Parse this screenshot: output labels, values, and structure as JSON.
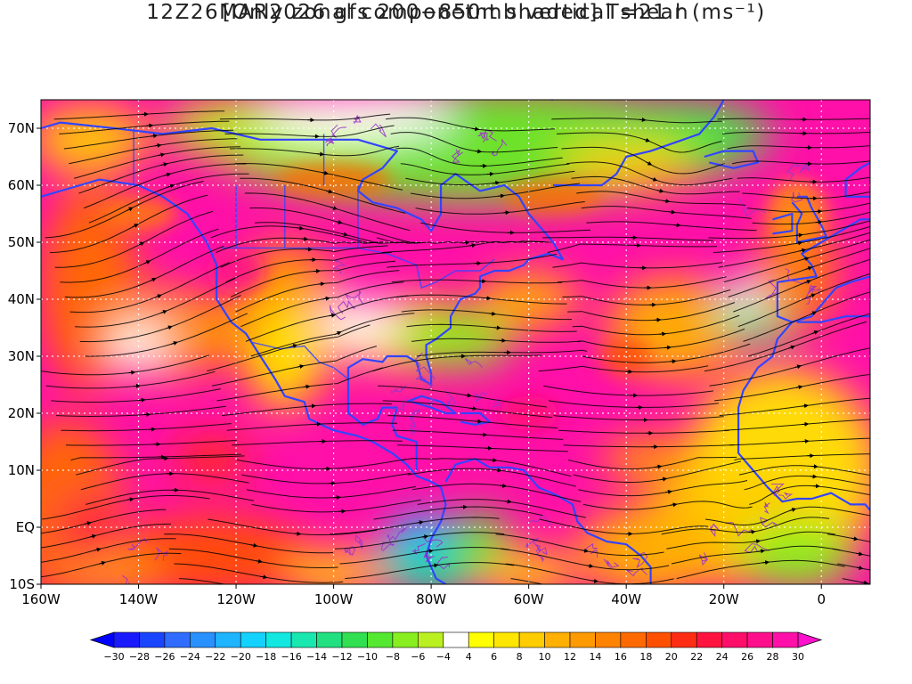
{
  "title": {
    "line1": "12Z26MAR2026 gfs 200−850mb vertical shear (ms⁻¹)",
    "line2": "[Only zonal componetnt shaded] T=21 h"
  },
  "map": {
    "lon_range": [
      -160,
      10
    ],
    "lat_range": [
      -10,
      75
    ],
    "lat_ticks": [
      "70N",
      "60N",
      "50N",
      "40N",
      "30N",
      "20N",
      "10N",
      "EQ",
      "10S"
    ],
    "lon_ticks": [
      "160W",
      "140W",
      "120W",
      "100W",
      "80W",
      "60W",
      "40W",
      "20W",
      "0"
    ],
    "lat_tick_values": [
      70,
      60,
      50,
      40,
      30,
      20,
      10,
      0,
      -10
    ],
    "lon_tick_values": [
      -160,
      -140,
      -120,
      -100,
      -80,
      -60,
      -40,
      -20,
      0
    ],
    "coastline_color": "#3344ff",
    "contour_color": "#9933cc",
    "streamline_color": "#000000"
  },
  "colorbar": {
    "labels": [
      "-30",
      "-28",
      "-26",
      "-24",
      "-22",
      "-20",
      "-18",
      "-16",
      "-14",
      "-12",
      "-10",
      "-8",
      "-6",
      "-4",
      "4",
      "6",
      "8",
      "10",
      "12",
      "14",
      "16",
      "18",
      "20",
      "22",
      "24",
      "26",
      "28",
      "30"
    ],
    "colors": [
      "#1a1aff",
      "#1a45ff",
      "#2f6cff",
      "#2890ff",
      "#1eb4ff",
      "#14d2ff",
      "#12e8e0",
      "#18e8b0",
      "#20e080",
      "#30e050",
      "#55e830",
      "#88ee20",
      "#bbf020",
      "#ffffff",
      "#ffff00",
      "#ffe600",
      "#ffcc00",
      "#ffb000",
      "#ff9a00",
      "#ff8200",
      "#ff6a00",
      "#ff5000",
      "#ff2c14",
      "#ff1440",
      "#ff0f6a",
      "#ff0f8c",
      "#ff10a8"
    ],
    "under_color": "#0000ff",
    "over_color": "#ff10cc"
  }
}
